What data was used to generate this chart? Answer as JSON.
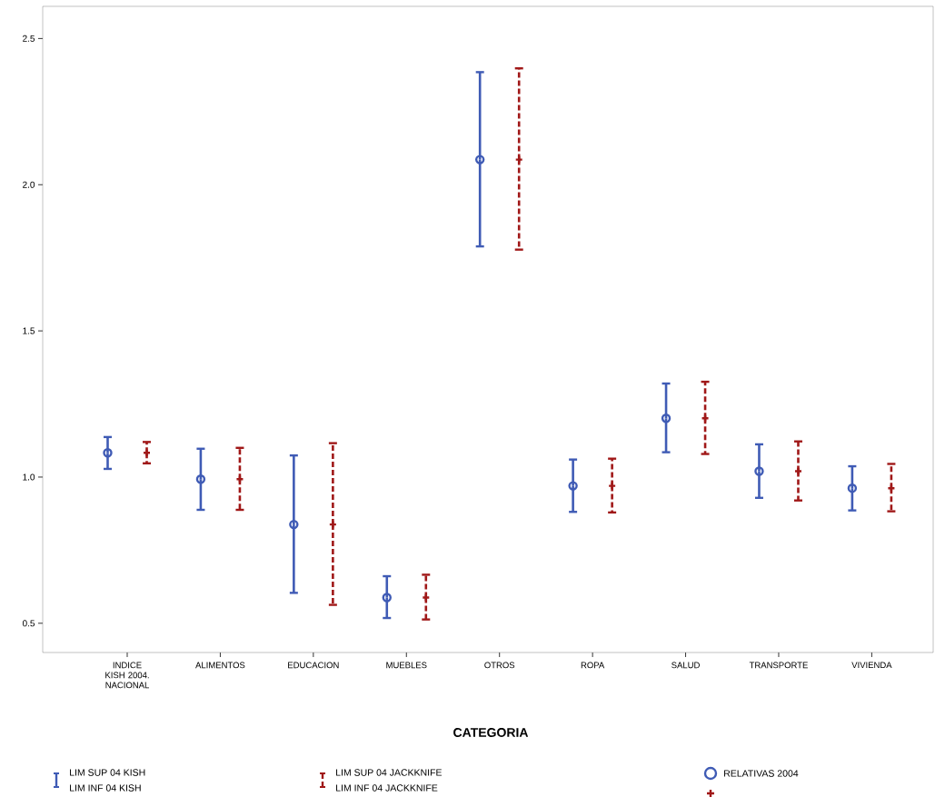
{
  "chart_data": {
    "type": "scatter",
    "xlabel": "CATEGORIA",
    "categories": [
      "INDICE KISH 2004. NACIONAL",
      "ALIMENTOS",
      "EDUCACION",
      "MUEBLES",
      "OTROS",
      "ROPA",
      "SALUD",
      "TRANSPORTE",
      "VIVIENDA"
    ],
    "series": [
      {
        "name": "RELATIVAS 2004",
        "color": "#3f5bb5",
        "marker": "circle",
        "line_style": "solid",
        "values": [
          1.083,
          0.993,
          0.838,
          0.588,
          2.086,
          0.97,
          1.201,
          1.02,
          0.962
        ],
        "errors": [
          [
            1.028,
            1.137
          ],
          [
            0.888,
            1.097
          ],
          [
            0.604,
            1.074
          ],
          [
            0.518,
            0.661
          ],
          [
            1.789,
            2.385
          ],
          [
            0.881,
            1.06
          ],
          [
            1.085,
            1.32
          ],
          [
            0.929,
            1.112
          ],
          [
            0.886,
            1.037
          ]
        ]
      },
      {
        "color": "#a01818",
        "marker": "cross",
        "line_style": "dashed",
        "values": [
          1.083,
          0.993,
          0.838,
          0.588,
          2.086,
          0.97,
          1.201,
          1.02,
          0.962
        ],
        "errors": [
          [
            1.047,
            1.12
          ],
          [
            0.888,
            1.1
          ],
          [
            0.563,
            1.116
          ],
          [
            0.513,
            0.666
          ],
          [
            1.778,
            2.398
          ],
          [
            0.879,
            1.063
          ],
          [
            1.079,
            1.326
          ],
          [
            0.92,
            1.122
          ],
          [
            0.883,
            1.045
          ]
        ]
      }
    ],
    "ylim": [
      0.4,
      2.61
    ],
    "yticks": [
      {
        "value": 0.5,
        "label": "0.5"
      },
      {
        "value": 1.0,
        "label": "1.0"
      },
      {
        "value": 1.5,
        "label": "1.5"
      },
      {
        "value": 2.0,
        "label": "2.0"
      },
      {
        "value": 2.5,
        "label": "2.5"
      }
    ],
    "grid": false,
    "legend": "bottom",
    "annotations": [
      "LIM SUP 04 KISH",
      "LIM INF 04 KISH",
      "LIM SUP 04 JACKKNIFE",
      "LIM INF 04 JACKKNIFE"
    ]
  }
}
